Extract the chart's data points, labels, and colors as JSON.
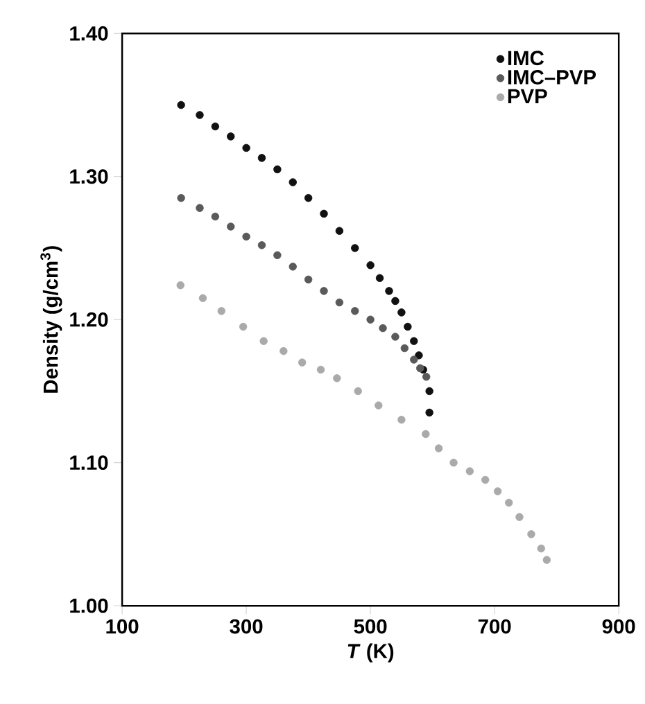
{
  "chart_data": {
    "type": "scatter",
    "xlabel": "*T* (K)",
    "ylabel": "Density (g/cm$^{3}$)",
    "xlim": [
      100,
      900
    ],
    "xticks": [
      100,
      300,
      500,
      700,
      900
    ],
    "ylim": [
      1.0,
      1.4
    ],
    "yticks": [
      {
        "value": 1.0,
        "label": "1.00"
      },
      {
        "value": 1.1,
        "label": "1.10"
      },
      {
        "value": 1.2,
        "label": "1.20"
      },
      {
        "value": 1.3,
        "label": "1.30"
      },
      {
        "value": 1.4,
        "label": "1.40"
      }
    ],
    "grid": false,
    "legend": "top right",
    "series": [
      {
        "name": "IMC",
        "color": "#111111",
        "x": [
          195,
          225,
          250,
          275,
          300,
          325,
          350,
          375,
          400,
          425,
          450,
          475,
          500,
          515,
          530,
          540,
          550,
          560,
          570,
          578,
          585,
          590,
          595,
          595
        ],
        "values": [
          1.35,
          1.343,
          1.335,
          1.328,
          1.32,
          1.313,
          1.305,
          1.296,
          1.285,
          1.274,
          1.262,
          1.25,
          1.238,
          1.229,
          1.22,
          1.213,
          1.205,
          1.195,
          1.185,
          1.175,
          1.165,
          null,
          1.15,
          1.135
        ]
      },
      {
        "name": "IMC–PVP",
        "color": "#5a5a5a",
        "x": [
          195,
          225,
          250,
          275,
          300,
          325,
          350,
          375,
          400,
          425,
          450,
          475,
          500,
          520,
          540,
          555,
          570,
          580,
          590
        ],
        "values": [
          1.285,
          1.278,
          1.272,
          1.265,
          1.258,
          1.252,
          1.245,
          1.237,
          1.228,
          1.22,
          1.212,
          1.206,
          1.2,
          1.194,
          1.188,
          1.18,
          1.172,
          1.166,
          1.16
        ]
      },
      {
        "name": "PVP",
        "color": "#aaaaaa",
        "x": [
          194,
          230,
          260,
          295,
          328,
          360,
          390,
          420,
          446,
          480,
          513,
          550,
          589,
          610,
          634,
          660,
          685,
          705,
          723,
          740,
          759,
          775,
          784
        ],
        "values": [
          1.224,
          1.215,
          1.206,
          1.195,
          1.185,
          1.178,
          1.17,
          1.165,
          1.159,
          1.15,
          1.14,
          1.13,
          1.12,
          1.11,
          1.1,
          1.094,
          1.088,
          1.08,
          1.072,
          1.062,
          1.05,
          1.04,
          1.032
        ]
      }
    ]
  }
}
